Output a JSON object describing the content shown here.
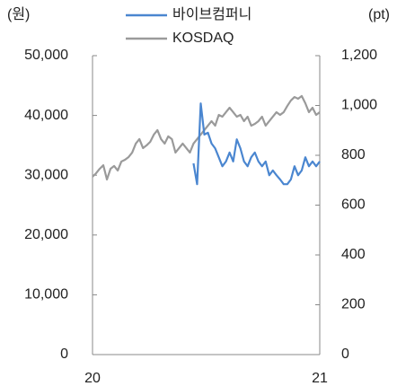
{
  "chart_data": {
    "type": "line",
    "y_label": "(원)",
    "y2_label": "(pt)",
    "categories": [
      "20",
      null,
      null,
      null,
      null,
      null,
      null,
      null,
      null,
      null,
      null,
      null,
      null,
      null,
      null,
      null,
      null,
      null,
      null,
      null,
      null,
      null,
      null,
      null,
      null,
      null,
      null,
      null,
      null,
      null,
      null,
      null,
      null,
      null,
      null,
      null,
      null,
      null,
      null,
      null,
      null,
      null,
      null,
      null,
      null,
      null,
      null,
      null,
      null,
      null,
      null,
      null,
      null,
      null,
      null,
      null,
      null,
      null,
      null,
      null,
      null,
      null,
      null,
      "21"
    ],
    "series": [
      {
        "name": "바이브컴퍼니",
        "color": "#4a86d0",
        "axis": "y",
        "values": [
          null,
          null,
          null,
          null,
          null,
          null,
          null,
          null,
          null,
          null,
          null,
          null,
          null,
          null,
          null,
          null,
          null,
          null,
          null,
          null,
          null,
          null,
          null,
          null,
          null,
          null,
          null,
          null,
          32000,
          28500,
          42000,
          36800,
          37100,
          35300,
          34500,
          33000,
          31500,
          32300,
          33800,
          32300,
          36000,
          34500,
          32300,
          31500,
          33000,
          33800,
          32300,
          31500,
          32300,
          30000,
          30800,
          30000,
          29300,
          28500,
          28500,
          29300,
          31500,
          30000,
          30800,
          33000,
          31500,
          32300,
          31500,
          32300
        ]
      },
      {
        "name": "KOSDAQ",
        "color": "#9a9a9a",
        "axis": "y2",
        "values": [
          714,
          728,
          746,
          760,
          703,
          746,
          757,
          739,
          775,
          782,
          793,
          811,
          847,
          865,
          829,
          840,
          854,
          883,
          901,
          865,
          847,
          876,
          865,
          811,
          829,
          847,
          829,
          811,
          847,
          865,
          883,
          901,
          919,
          937,
          919,
          962,
          955,
          973,
          991,
          973,
          955,
          962,
          937,
          955,
          919,
          926,
          937,
          955,
          919,
          937,
          955,
          973,
          962,
          973,
          998,
          1020,
          1034,
          1027,
          1038,
          1009,
          973,
          991,
          962,
          973
        ]
      }
    ],
    "ylim": [
      0,
      50000
    ],
    "yticks": [
      0,
      {
        "value": 10000,
        "label": "10,000"
      },
      {
        "value": 20000,
        "label": "20,000"
      },
      {
        "value": 30000,
        "label": "30,000"
      },
      {
        "value": 40000,
        "label": "40,000"
      },
      {
        "value": 50000,
        "label": "50,000"
      }
    ],
    "y2lim": [
      0,
      1200
    ],
    "y2ticks": [
      0,
      200,
      400,
      600,
      800,
      {
        "value": 1000,
        "label": "1,000"
      },
      {
        "value": 1200,
        "label": "1,200"
      }
    ],
    "legend": "top"
  }
}
